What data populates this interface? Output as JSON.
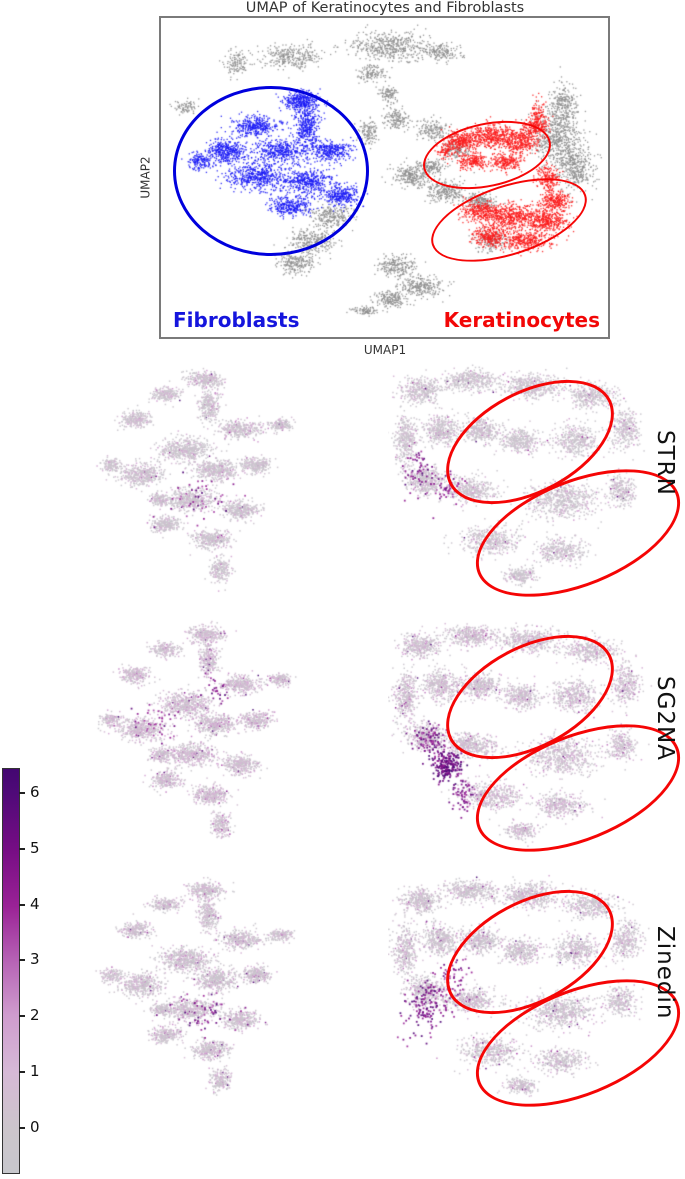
{
  "chart_data": {
    "overview": {
      "type": "scatter",
      "title": "UMAP of Keratinocytes and Fibroblasts",
      "xlabel": "UMAP1",
      "ylabel": "UMAP2",
      "axes": {
        "ticks_visible": false
      },
      "annotations": {
        "fibroblasts": {
          "label": "Fibroblasts",
          "color": "#1515dd",
          "ellipse_color": "#0000dd"
        },
        "keratinocytes": {
          "label": "Keratinocytes",
          "color": "#f20707",
          "ellipse_color": "#f50505"
        }
      },
      "series": [
        {
          "name": "other-cells",
          "color": "#8f8f8f",
          "clusters": [
            [
              0.513,
              0.088,
              0.089,
              0.045,
              500
            ],
            [
              0.625,
              0.105,
              0.04,
              0.025,
              160
            ],
            [
              0.29,
              0.119,
              0.065,
              0.04,
              300
            ],
            [
              0.167,
              0.141,
              0.024,
              0.045,
              120
            ],
            [
              0.469,
              0.172,
              0.028,
              0.028,
              120
            ],
            [
              0.509,
              0.238,
              0.022,
              0.026,
              100
            ],
            [
              0.056,
              0.275,
              0.028,
              0.022,
              80
            ],
            [
              0.525,
              0.316,
              0.03,
              0.032,
              150
            ],
            [
              0.464,
              0.353,
              0.023,
              0.045,
              130
            ],
            [
              0.607,
              0.35,
              0.034,
              0.032,
              160
            ],
            [
              0.659,
              0.409,
              0.028,
              0.028,
              120
            ],
            [
              0.9,
              0.27,
              0.03,
              0.06,
              260
            ],
            [
              0.882,
              0.37,
              0.056,
              0.08,
              550
            ],
            [
              0.926,
              0.465,
              0.042,
              0.075,
              400
            ],
            [
              0.558,
              0.494,
              0.042,
              0.032,
              250
            ],
            [
              0.636,
              0.541,
              0.046,
              0.032,
              250
            ],
            [
              0.714,
              0.572,
              0.034,
              0.026,
              180
            ],
            [
              0.603,
              0.462,
              0.033,
              0.025,
              150
            ],
            [
              0.379,
              0.619,
              0.046,
              0.038,
              250
            ],
            [
              0.335,
              0.697,
              0.05,
              0.038,
              280
            ],
            [
              0.301,
              0.766,
              0.04,
              0.032,
              220
            ],
            [
              0.525,
              0.775,
              0.04,
              0.032,
              220
            ],
            [
              0.58,
              0.838,
              0.05,
              0.032,
              260
            ],
            [
              0.513,
              0.878,
              0.034,
              0.026,
              180
            ],
            [
              0.458,
              0.916,
              0.028,
              0.016,
              90
            ],
            [
              0.737,
              0.697,
              0.034,
              0.032,
              160
            ]
          ]
        },
        {
          "name": "fibroblasts",
          "color": "#1a1af5",
          "clusters": [
            [
              0.313,
              0.259,
              0.04,
              0.032,
              350
            ],
            [
              0.324,
              0.338,
              0.028,
              0.058,
              350
            ],
            [
              0.212,
              0.338,
              0.05,
              0.032,
              350
            ],
            [
              0.145,
              0.416,
              0.046,
              0.038,
              380
            ],
            [
              0.268,
              0.416,
              0.058,
              0.038,
              420
            ],
            [
              0.379,
              0.416,
              0.046,
              0.032,
              330
            ],
            [
              0.212,
              0.494,
              0.068,
              0.045,
              500
            ],
            [
              0.324,
              0.509,
              0.058,
              0.038,
              420
            ],
            [
              0.402,
              0.556,
              0.04,
              0.032,
              300
            ],
            [
              0.29,
              0.588,
              0.046,
              0.032,
              300
            ],
            [
              0.089,
              0.447,
              0.028,
              0.026,
              150
            ]
          ]
        },
        {
          "name": "keratinocytes",
          "color": "#fb1b1b",
          "clusters": [
            [
              0.67,
              0.384,
              0.04,
              0.032,
              300
            ],
            [
              0.737,
              0.369,
              0.05,
              0.038,
              400
            ],
            [
              0.804,
              0.384,
              0.04,
              0.038,
              350
            ],
            [
              0.837,
              0.338,
              0.028,
              0.026,
              150
            ],
            [
              0.692,
              0.447,
              0.034,
              0.026,
              200
            ],
            [
              0.77,
              0.447,
              0.04,
              0.026,
              220
            ],
            [
              0.844,
              0.306,
              0.018,
              0.055,
              130
            ],
            [
              0.865,
              0.5,
              0.025,
              0.04,
              200
            ],
            [
              0.714,
              0.603,
              0.046,
              0.032,
              300
            ],
            [
              0.781,
              0.619,
              0.058,
              0.038,
              450
            ],
            [
              0.859,
              0.634,
              0.046,
              0.038,
              400
            ],
            [
              0.815,
              0.697,
              0.058,
              0.032,
              350
            ],
            [
              0.737,
              0.681,
              0.04,
              0.032,
              280
            ],
            [
              0.882,
              0.572,
              0.034,
              0.032,
              250
            ],
            [
              0.636,
              0.416,
              0.022,
              0.022,
              90
            ]
          ]
        }
      ]
    },
    "colormap": {
      "value_range": [
        0,
        6.5
      ],
      "stops": [
        [
          0,
          "#c7c6cc"
        ],
        [
          0.08,
          "#cdc3cd"
        ],
        [
          0.18,
          "#d6b9d6"
        ],
        [
          0.31,
          "#d2a3d1"
        ],
        [
          0.46,
          "#b767b7"
        ],
        [
          0.62,
          "#9b2497"
        ],
        [
          0.77,
          "#770d85"
        ],
        [
          0.92,
          "#4f0a78"
        ],
        [
          1,
          "#430771"
        ]
      ]
    },
    "colorbar": {
      "ticks": [
        "6",
        "5",
        "4",
        "3",
        "2",
        "1",
        "0"
      ]
    },
    "shapes": {
      "fibroblast_cluster": [
        [
          0.504,
          0.069,
          0.079,
          0.033,
          280
        ],
        [
          0.518,
          0.171,
          0.044,
          0.065,
          260
        ],
        [
          0.329,
          0.13,
          0.066,
          0.028,
          200
        ],
        [
          0.197,
          0.232,
          0.066,
          0.033,
          240
        ],
        [
          0.658,
          0.272,
          0.096,
          0.037,
          330
        ],
        [
          0.833,
          0.252,
          0.053,
          0.024,
          150
        ],
        [
          0.417,
          0.354,
          0.11,
          0.049,
          500
        ],
        [
          0.219,
          0.455,
          0.096,
          0.045,
          420
        ],
        [
          0.088,
          0.415,
          0.044,
          0.028,
          130
        ],
        [
          0.548,
          0.435,
          0.088,
          0.041,
          400
        ],
        [
          0.724,
          0.415,
          0.066,
          0.033,
          260
        ],
        [
          0.439,
          0.557,
          0.11,
          0.045,
          450
        ],
        [
          0.658,
          0.598,
          0.079,
          0.037,
          320
        ],
        [
          0.526,
          0.72,
          0.079,
          0.037,
          320
        ],
        [
          0.57,
          0.841,
          0.044,
          0.049,
          200
        ],
        [
          0.329,
          0.659,
          0.066,
          0.033,
          240
        ],
        [
          0.307,
          0.557,
          0.044,
          0.024,
          140
        ]
      ],
      "keratinocyte_region": [
        [
          0.11,
          0.114,
          0.068,
          0.049,
          350
        ],
        [
          0.281,
          0.073,
          0.086,
          0.041,
          380
        ],
        [
          0.486,
          0.093,
          0.103,
          0.049,
          450
        ],
        [
          0.692,
          0.134,
          0.086,
          0.049,
          350
        ],
        [
          0.812,
          0.276,
          0.051,
          0.081,
          300
        ],
        [
          0.058,
          0.317,
          0.041,
          0.102,
          350
        ],
        [
          0.178,
          0.276,
          0.062,
          0.061,
          380
        ],
        [
          0.315,
          0.276,
          0.068,
          0.049,
          350
        ],
        [
          0.452,
          0.317,
          0.068,
          0.049,
          320
        ],
        [
          0.64,
          0.317,
          0.075,
          0.061,
          380
        ],
        [
          0.127,
          0.48,
          0.062,
          0.057,
          380
        ],
        [
          0.281,
          0.52,
          0.086,
          0.049,
          400
        ],
        [
          0.589,
          0.561,
          0.12,
          0.073,
          600
        ],
        [
          0.795,
          0.52,
          0.051,
          0.061,
          250
        ],
        [
          0.349,
          0.724,
          0.103,
          0.057,
          420
        ],
        [
          0.589,
          0.764,
          0.086,
          0.049,
          330
        ],
        [
          0.452,
          0.866,
          0.051,
          0.033,
          200
        ]
      ]
    },
    "expression_panels": [
      {
        "gene": "STRN",
        "left": {
          "shape": "fibroblast_cluster",
          "pink": 0.3,
          "hot": 0.01,
          "hotspots": [
            [
              0.45,
              0.55,
              0.15,
              0.1,
              45,
              3,
              6
            ]
          ]
        },
        "right": {
          "shape": "keratinocyte_region",
          "pink": 0.26,
          "hot": 0.01,
          "hotspots": [
            [
              0.1,
              0.45,
              0.06,
              0.1,
              55,
              3.5,
              6
            ],
            [
              0.2,
              0.52,
              0.06,
              0.08,
              45,
              3,
              5.5
            ]
          ]
        }
      },
      {
        "gene": "SG2NA",
        "left": {
          "shape": "fibroblast_cluster",
          "pink": 0.55,
          "hot": 0.018,
          "hotspots": [
            [
              0.3,
              0.42,
              0.12,
              0.08,
              40,
              3,
              5.5
            ],
            [
              0.55,
              0.3,
              0.06,
              0.05,
              25,
              3,
              6
            ]
          ]
        },
        "right": {
          "shape": "keratinocyte_region",
          "pink": 0.45,
          "hot": 0.012,
          "hotspots": [
            [
              0.2,
              0.6,
              0.05,
              0.06,
              230,
              4,
              6.5
            ],
            [
              0.14,
              0.5,
              0.05,
              0.07,
              90,
              3,
              6
            ],
            [
              0.25,
              0.72,
              0.04,
              0.06,
              60,
              3,
              5.5
            ]
          ]
        }
      },
      {
        "gene": "Zinedin",
        "left": {
          "shape": "fibroblast_cluster",
          "pink": 0.38,
          "hot": 0.014,
          "hotspots": [
            [
              0.5,
              0.57,
              0.14,
              0.08,
              55,
              3,
              6
            ]
          ]
        },
        "right": {
          "shape": "keratinocyte_region",
          "pink": 0.32,
          "hot": 0.012,
          "hotspots": [
            [
              0.12,
              0.55,
              0.07,
              0.12,
              130,
              3.5,
              6
            ],
            [
              0.22,
              0.45,
              0.06,
              0.1,
              80,
              3,
              5.5
            ]
          ]
        }
      }
    ]
  }
}
